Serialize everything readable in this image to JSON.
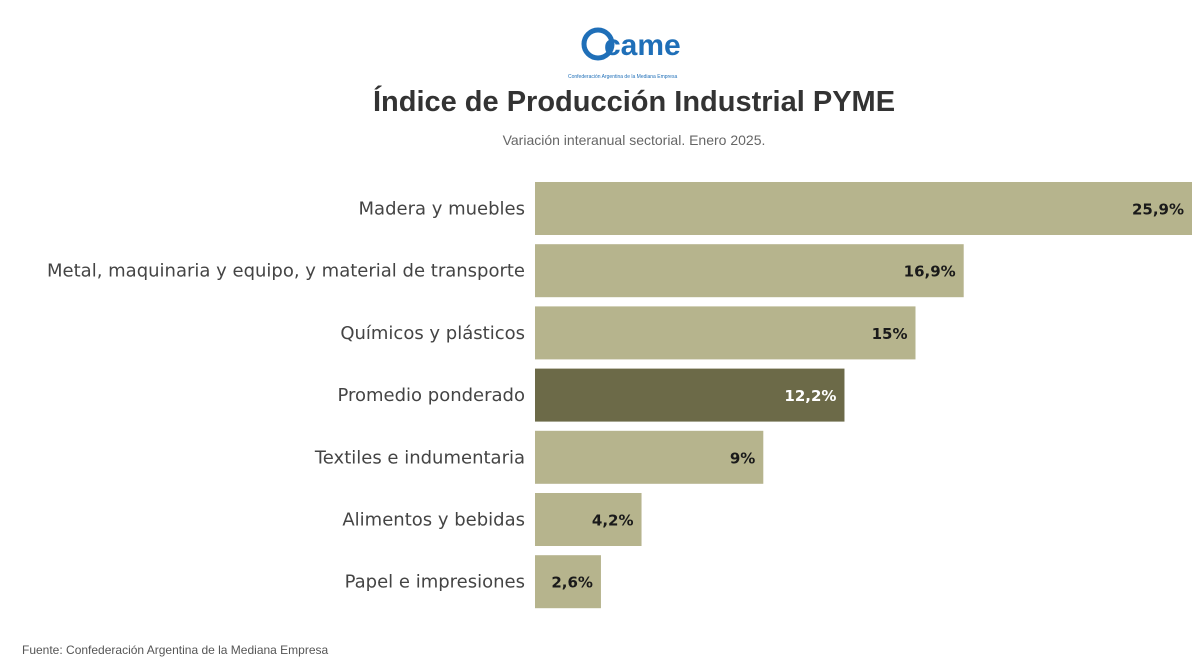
{
  "logo": {
    "text": "came",
    "tagline": "Confederación Argentina de la Mediana Empresa",
    "color": "#1f6fb8"
  },
  "title": "Índice de Producción Industrial PYME",
  "subtitle": "Variación interanual sectorial. Enero 2025.",
  "source": "Fuente: Confederación Argentina de la Mediana Empresa",
  "colors": {
    "bar": "#b6b48d",
    "highlight_bar": "#6c6a48",
    "value_text": "#1a1a1a",
    "highlight_value_text": "#ffffff"
  },
  "chart_data": {
    "type": "bar",
    "orientation": "horizontal",
    "categories": [
      "Madera y muebles",
      "Metal, maquinaria y equipo, y material de transporte",
      "Químicos y plásticos",
      "Promedio ponderado",
      "Textiles e indumentaria",
      "Alimentos y bebidas",
      "Papel e impresiones"
    ],
    "values": [
      25.9,
      16.9,
      15,
      12.2,
      9,
      4.2,
      2.6
    ],
    "value_labels": [
      "25,9%",
      "16,9%",
      "15%",
      "12,2%",
      "9%",
      "4,2%",
      "2,6%"
    ],
    "highlight_index": 3,
    "unit": "%",
    "xlim": [
      0,
      25.9
    ],
    "grid": false,
    "legend": "none"
  }
}
